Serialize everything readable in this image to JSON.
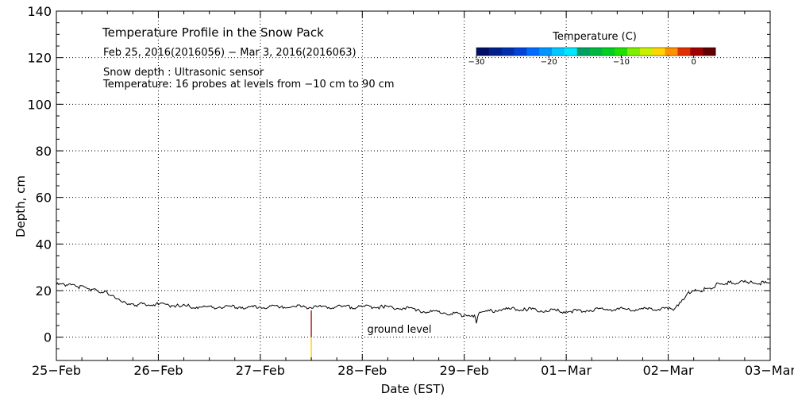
{
  "chart_data": {
    "type": "line",
    "title": "Temperature Profile in the Snow Pack",
    "subtitle": "Feb 25, 2016(2016056) − Mar  3, 2016(2016063)",
    "notes": [
      "Snow depth : Ultrasonic sensor",
      "Temperature: 16 probes at levels from −10 cm to 90 cm"
    ],
    "annotation": "ground level",
    "xlabel": "Date (EST)",
    "ylabel": "Depth, cm",
    "ylim": [
      -10,
      140
    ],
    "xlim": [
      0,
      7
    ],
    "x_ticks": [
      {
        "pos": 0,
        "label": "25−Feb"
      },
      {
        "pos": 1,
        "label": "26−Feb"
      },
      {
        "pos": 2,
        "label": "27−Feb"
      },
      {
        "pos": 3,
        "label": "28−Feb"
      },
      {
        "pos": 4,
        "label": "29−Feb"
      },
      {
        "pos": 5,
        "label": "01−Mar"
      },
      {
        "pos": 6,
        "label": "02−Mar"
      },
      {
        "pos": 7,
        "label": "03−Mar"
      }
    ],
    "y_ticks": [
      0,
      20,
      40,
      60,
      80,
      100,
      120,
      140
    ],
    "grid": true,
    "series": [
      {
        "name": "Snow depth",
        "color": "#000000",
        "x": [
          0.0,
          0.1,
          0.2,
          0.3,
          0.4,
          0.5,
          0.55,
          0.6,
          0.65,
          0.7,
          0.8,
          1.0,
          1.2,
          1.4,
          1.6,
          1.8,
          2.0,
          2.2,
          2.4,
          2.6,
          2.8,
          3.0,
          3.2,
          3.4,
          3.55,
          3.6,
          3.8,
          4.0,
          4.1,
          4.12,
          4.14,
          4.2,
          4.4,
          4.6,
          4.8,
          5.0,
          5.2,
          5.4,
          5.6,
          5.8,
          6.0,
          6.05,
          6.1,
          6.15,
          6.2,
          6.3,
          6.4,
          6.5,
          6.6,
          6.8,
          7.0
        ],
        "values": [
          22.5,
          22.5,
          21.8,
          21.0,
          20.0,
          19.0,
          18.0,
          16.5,
          15.0,
          14.0,
          14.0,
          14.0,
          13.5,
          13.0,
          13.0,
          13.0,
          13.0,
          13.0,
          13.0,
          13.0,
          13.0,
          13.0,
          13.0,
          12.5,
          12.0,
          11.0,
          10.5,
          9.5,
          9.5,
          6.0,
          10.0,
          11.0,
          12.0,
          12.0,
          11.5,
          11.0,
          11.5,
          12.0,
          12.0,
          12.0,
          12.0,
          11.5,
          13.5,
          16.0,
          19.5,
          20.0,
          21.0,
          23.0,
          23.5,
          23.5,
          23.0
        ]
      },
      {
        "name": "Temperature probe strip",
        "color_top": "#b22222",
        "color_bottom": "#ffd700",
        "x": [
          2.5,
          2.5
        ],
        "values": [
          11.5,
          -10
        ]
      }
    ],
    "colorbar": {
      "title": "Temperature (C)",
      "range": [
        -30,
        3
      ],
      "tick_values": [
        -30,
        -20,
        -10,
        0
      ],
      "tick_labels": [
        "−30",
        "−20",
        "−10",
        "0"
      ],
      "colors": [
        "#001066",
        "#00208c",
        "#0030b0",
        "#0044d8",
        "#006cff",
        "#0096ff",
        "#00c8ff",
        "#00e8ff",
        "#00a060",
        "#00b840",
        "#00d020",
        "#20e000",
        "#80ee00",
        "#c8f000",
        "#ffd400",
        "#ff9000",
        "#e03000",
        "#a00000",
        "#600000"
      ]
    }
  }
}
